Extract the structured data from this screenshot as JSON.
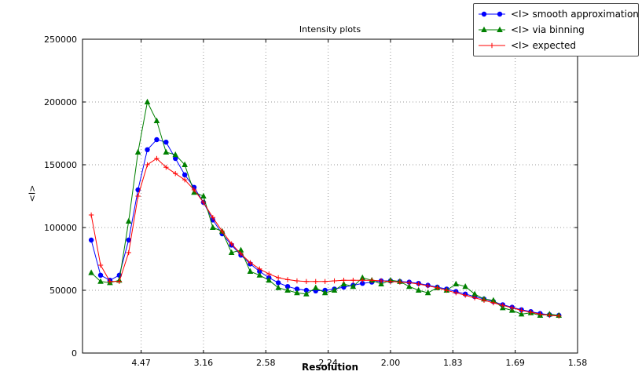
{
  "chart_data": {
    "type": "line",
    "title": "Intensity plots",
    "xlabel": "Resolution",
    "ylabel": "<I>",
    "grid": true,
    "legend_position": "upper right",
    "x_axis": {
      "min": 0.003,
      "max": 0.4,
      "tick_positions": [
        0.05,
        0.1,
        0.15,
        0.2,
        0.25,
        0.3,
        0.35,
        0.4
      ],
      "tick_labels": [
        "4.47",
        "3.16",
        "2.58",
        "2.24",
        "2.00",
        "1.83",
        "1.69",
        "1.58"
      ]
    },
    "y_axis": {
      "min": 0,
      "max": 250000,
      "tick_positions": [
        0,
        50000,
        100000,
        150000,
        200000,
        250000
      ],
      "tick_labels": [
        "0",
        "50000",
        "100000",
        "150000",
        "200000",
        "250000"
      ]
    },
    "x": [
      0.01,
      0.0175,
      0.025,
      0.0325,
      0.04,
      0.0475,
      0.055,
      0.0625,
      0.07,
      0.0775,
      0.085,
      0.0925,
      0.1,
      0.1075,
      0.115,
      0.1225,
      0.13,
      0.1375,
      0.145,
      0.1525,
      0.16,
      0.1675,
      0.175,
      0.1825,
      0.19,
      0.1975,
      0.205,
      0.2125,
      0.22,
      0.2275,
      0.235,
      0.2425,
      0.25,
      0.2575,
      0.265,
      0.2725,
      0.28,
      0.2875,
      0.295,
      0.3025,
      0.31,
      0.3175,
      0.325,
      0.3325,
      0.34,
      0.3475,
      0.355,
      0.3625,
      0.37,
      0.3775,
      0.385
    ],
    "series": [
      {
        "name": "<I> smooth approximation",
        "color": "#0000ff",
        "marker": "circle",
        "values": [
          90000,
          62000,
          58000,
          62000,
          90000,
          130000,
          162000,
          170000,
          168000,
          155000,
          142000,
          132000,
          120000,
          106000,
          95000,
          86000,
          78000,
          71000,
          65000,
          60000,
          56000,
          53000,
          51000,
          50000,
          49500,
          50000,
          51000,
          52500,
          54000,
          55500,
          56500,
          57500,
          57500,
          57000,
          56500,
          55500,
          54000,
          52500,
          51000,
          49000,
          47000,
          45000,
          43000,
          41000,
          38500,
          36500,
          34500,
          33000,
          31500,
          30500,
          30000
        ]
      },
      {
        "name": "<I> via binning",
        "color": "#008000",
        "marker": "triangle",
        "values": [
          64000,
          57000,
          56000,
          58000,
          105000,
          160000,
          200000,
          185000,
          160000,
          158000,
          150000,
          128000,
          125000,
          100000,
          97000,
          80000,
          82000,
          65000,
          62000,
          58000,
          52000,
          50000,
          48000,
          47000,
          52000,
          48000,
          50000,
          55000,
          53000,
          60000,
          58000,
          55000,
          58000,
          57000,
          53000,
          50000,
          48000,
          52000,
          50000,
          55000,
          53000,
          47000,
          43000,
          42000,
          36000,
          34000,
          31000,
          32000,
          30000,
          31000,
          30000
        ]
      },
      {
        "name": "<I> expected",
        "color": "#ff0000",
        "marker": "plus",
        "values": [
          110000,
          70000,
          57000,
          57000,
          80000,
          125000,
          150000,
          155000,
          148000,
          143000,
          138000,
          130000,
          120000,
          108000,
          97000,
          87000,
          79000,
          72000,
          67000,
          63000,
          60000,
          58500,
          57500,
          57000,
          57000,
          57000,
          57500,
          58000,
          58000,
          58000,
          58000,
          57500,
          57000,
          56500,
          56000,
          55000,
          53500,
          52000,
          50000,
          48000,
          46000,
          44000,
          42000,
          40000,
          38000,
          36000,
          34000,
          32500,
          31000,
          30000,
          29500
        ]
      }
    ]
  }
}
